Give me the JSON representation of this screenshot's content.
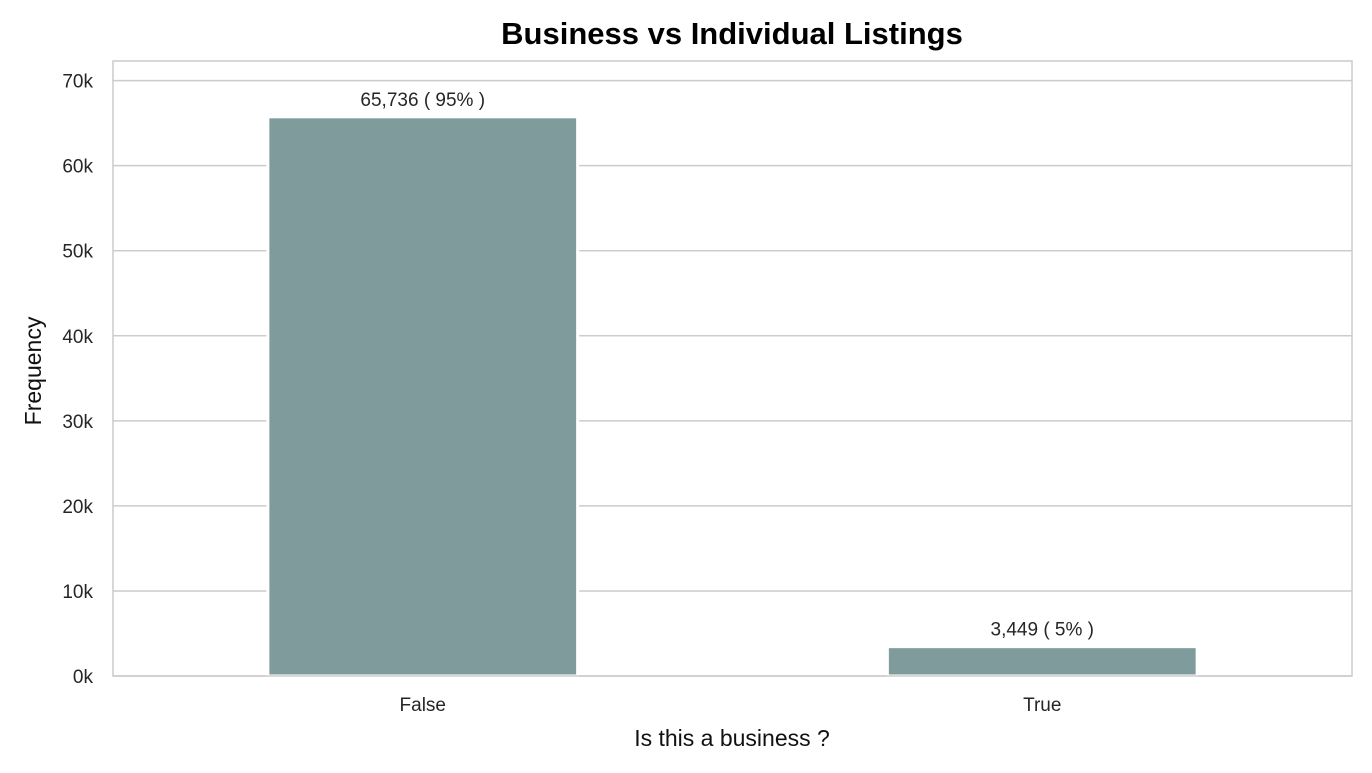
{
  "chart_data": {
    "type": "bar",
    "title": "Business vs Individual Listings",
    "xlabel": "Is this a business ?",
    "ylabel": "Frequency",
    "categories": [
      "False",
      "True"
    ],
    "values": [
      65736,
      3449
    ],
    "data_labels": [
      "65,736 ( 95% )",
      "3,449 ( 5% )"
    ],
    "ylim": [
      0,
      72300
    ],
    "yticks": [
      0,
      10000,
      20000,
      30000,
      40000,
      50000,
      60000,
      70000
    ],
    "ytick_labels": [
      "0k",
      "10k",
      "20k",
      "30k",
      "40k",
      "50k",
      "60k",
      "70k"
    ],
    "grid": "horizontal",
    "bar_color": "#7f9b9b",
    "grid_color": "#cccccc"
  }
}
